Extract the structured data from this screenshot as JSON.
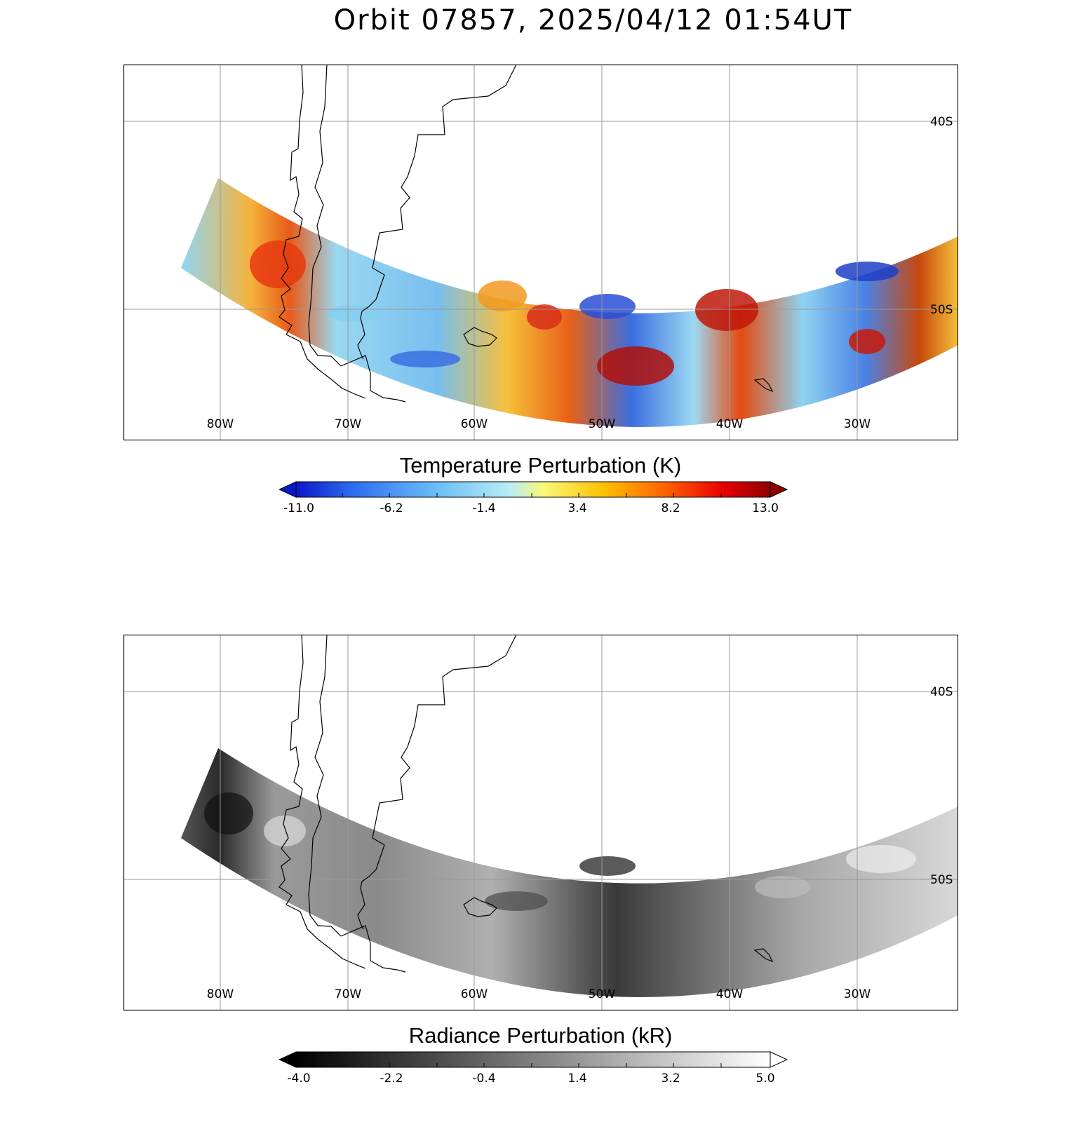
{
  "title": "Orbit 07857, 2025/04/12 01:54UT",
  "map": {
    "lon_labels": [
      "80W",
      "70W",
      "60W",
      "50W",
      "40W",
      "30W"
    ],
    "lat_labels": [
      "40S",
      "50S"
    ]
  },
  "temperature_panel": {
    "colorbar_title": "Temperature Perturbation (K)",
    "ticks": [
      "-11.0",
      "-6.2",
      "-1.4",
      "3.4",
      "8.2",
      "13.0"
    ],
    "colors": [
      "#0a18c8",
      "#2e6cf0",
      "#6cc0f8",
      "#b8ecf8",
      "#f8f87a",
      "#ffc000",
      "#ff6000",
      "#e80000",
      "#900000"
    ]
  },
  "radiance_panel": {
    "colorbar_title": "Radiance Perturbation (kR)",
    "ticks": [
      "-4.0",
      "-2.2",
      "-0.4",
      "1.4",
      "3.2",
      "5.0"
    ],
    "colors": [
      "#000000",
      "#ffffff"
    ]
  }
}
